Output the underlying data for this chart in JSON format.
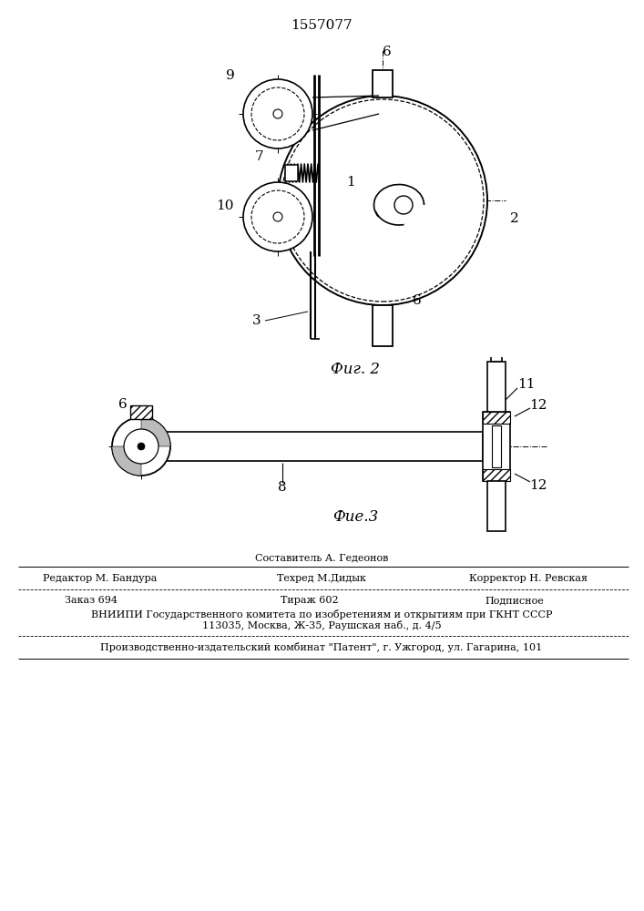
{
  "title": "1557077",
  "bg_color": "#ffffff",
  "line_color": "#000000",
  "fig2_label": "Фиг. 2",
  "fig3_label": "Фие.3",
  "footer": {
    "row1_center": "Составитель А. Гедеонов",
    "row2_left": "Редактор М. Бандура",
    "row2_center": "Техред М.Дидык",
    "row2_right": "Корректор Н. Ревская",
    "row3_left": "Заказ 694",
    "row3_center": "Тираж 602",
    "row3_right": "Подписное",
    "vniipи": "ВНИИПИ Государственного комитета по изобретениям и открытиям при ГКНТ СССР",
    "address": "113035, Москва, Ж-35, Раушская наб., д. 4/5",
    "patent": "Производственно-издательский комбинат \"Патент\", г. Ужгород, ул. Гагарина, 101"
  }
}
